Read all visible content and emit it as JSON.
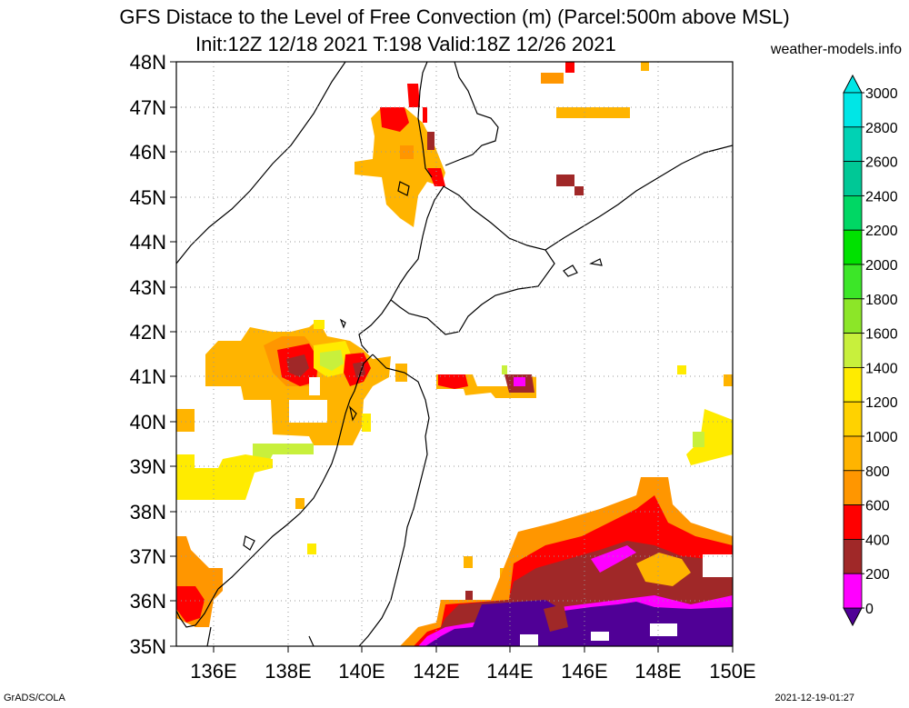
{
  "header": {
    "title": "GFS Distace to the Level of Free Convection (m) (Parcel:500m above MSL)",
    "subtitle": "Init:12Z 12/18 2021 T:198 Valid:18Z 12/26 2021",
    "site": "weather-models.info"
  },
  "footer": {
    "software": "GrADS/COLA",
    "timestamp": "2021-12-19-01:27"
  },
  "map": {
    "lat_labels": [
      "48N",
      "47N",
      "46N",
      "45N",
      "44N",
      "43N",
      "42N",
      "41N",
      "40N",
      "39N",
      "38N",
      "37N",
      "36N",
      "35N"
    ],
    "lon_labels": [
      "136E",
      "138E",
      "140E",
      "142E",
      "144E",
      "146E",
      "148E",
      "150E"
    ],
    "grid": "dotted"
  },
  "colorbar": {
    "labels": [
      "3000",
      "2800",
      "2600",
      "2400",
      "2200",
      "2000",
      "1800",
      "1600",
      "1400",
      "1200",
      "1000",
      "800",
      "600",
      "400",
      "200",
      "0"
    ],
    "colors": [
      "#00e6e6",
      "#00d2b4",
      "#00c896",
      "#00d764",
      "#00e100",
      "#3ce628",
      "#8ce628",
      "#c8f03c",
      "#ffeb00",
      "#ffd200",
      "#ffb400",
      "#ff9600",
      "#ff0000",
      "#a02828",
      "#ff00ff",
      "#500096"
    ]
  }
}
